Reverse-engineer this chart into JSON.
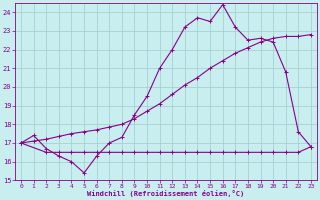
{
  "xlabel": "Windchill (Refroidissement éolien,°C)",
  "bg_color": "#c8eef0",
  "grid_color": "#a0cccc",
  "line_color": "#880088",
  "xlim": [
    -0.5,
    23.5
  ],
  "ylim": [
    15,
    24.5
  ],
  "yticks": [
    15,
    16,
    17,
    18,
    19,
    20,
    21,
    22,
    23,
    24
  ],
  "xticks": [
    0,
    1,
    2,
    3,
    4,
    5,
    6,
    7,
    8,
    9,
    10,
    11,
    12,
    13,
    14,
    15,
    16,
    17,
    18,
    19,
    20,
    21,
    22,
    23
  ],
  "series1_x": [
    0,
    1,
    2,
    3,
    4,
    5,
    6,
    7,
    8,
    9,
    10,
    11,
    12,
    13,
    14,
    15,
    16,
    17,
    18,
    19,
    20,
    21,
    22,
    23
  ],
  "series1_y": [
    17.0,
    17.4,
    16.7,
    16.3,
    16.0,
    15.4,
    16.3,
    17.0,
    17.3,
    18.5,
    19.5,
    21.0,
    22.0,
    23.2,
    23.7,
    23.5,
    24.4,
    23.2,
    22.5,
    22.6,
    22.4,
    20.8,
    17.6,
    16.8
  ],
  "series2_x": [
    0,
    2,
    3,
    4,
    5,
    6,
    7,
    8,
    9,
    10,
    11,
    12,
    13,
    14,
    15,
    16,
    17,
    18,
    19,
    20,
    21,
    22,
    23
  ],
  "series2_y": [
    17.0,
    16.5,
    16.5,
    16.5,
    16.5,
    16.5,
    16.5,
    16.5,
    16.5,
    16.5,
    16.5,
    16.5,
    16.5,
    16.5,
    16.5,
    16.5,
    16.5,
    16.5,
    16.5,
    16.5,
    16.5,
    16.5,
    16.8
  ],
  "series3_x": [
    0,
    1,
    2,
    3,
    4,
    5,
    6,
    7,
    8,
    9,
    10,
    11,
    12,
    13,
    14,
    15,
    16,
    17,
    18,
    19,
    20,
    21,
    22,
    23
  ],
  "series3_y": [
    17.0,
    17.1,
    17.2,
    17.35,
    17.5,
    17.6,
    17.7,
    17.85,
    18.0,
    18.3,
    18.7,
    19.1,
    19.6,
    20.1,
    20.5,
    21.0,
    21.4,
    21.8,
    22.1,
    22.4,
    22.6,
    22.7,
    22.7,
    22.8
  ]
}
